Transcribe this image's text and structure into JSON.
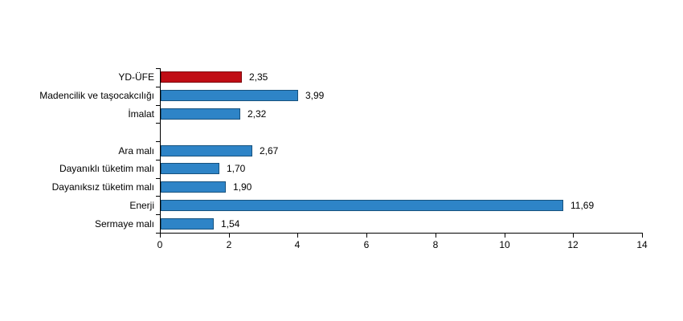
{
  "chart_data": {
    "type": "bar",
    "orientation": "horizontal",
    "title": "",
    "xlabel": "",
    "ylabel": "",
    "xlim": [
      0,
      14
    ],
    "x_ticks": [
      0,
      2,
      4,
      6,
      8,
      10,
      12,
      14
    ],
    "x_tick_labels": [
      "0",
      "2",
      "4",
      "6",
      "8",
      "10",
      "12",
      "14"
    ],
    "grid": false,
    "legend": false,
    "decimal_separator": ",",
    "categories": [
      "YD-ÜFE",
      "Madencilik ve taşocakcılığı",
      "İmalat",
      "",
      "Ara malı",
      "Dayanıklı tüketim malı",
      "Dayanıksız tüketim malı",
      "Enerji",
      "Sermaye malı"
    ],
    "values": [
      2.35,
      3.99,
      2.32,
      null,
      2.67,
      1.7,
      1.9,
      11.69,
      1.54
    ],
    "items": [
      {
        "label": "YD-ÜFE",
        "value": 2.35,
        "display": "2,35",
        "fill": "#C00D15",
        "border": "#7C090E"
      },
      {
        "label": "Madencilik ve taşocakcılığı",
        "value": 3.99,
        "display": "3,99",
        "fill": "#2E84C7",
        "border": "#17527E"
      },
      {
        "label": "İmalat",
        "value": 2.32,
        "display": "2,32",
        "fill": "#2E84C7",
        "border": "#17527E"
      },
      {
        "label": "",
        "value": null,
        "display": "",
        "fill": null,
        "border": null
      },
      {
        "label": "Ara malı",
        "value": 2.67,
        "display": "2,67",
        "fill": "#2E84C7",
        "border": "#17527E"
      },
      {
        "label": "Dayanıklı tüketim malı",
        "value": 1.7,
        "display": "1,70",
        "fill": "#2E84C7",
        "border": "#17527E"
      },
      {
        "label": "Dayanıksız tüketim malı",
        "value": 1.9,
        "display": "1,90",
        "fill": "#2E84C7",
        "border": "#17527E"
      },
      {
        "label": "Enerji",
        "value": 11.69,
        "display": "11,69",
        "fill": "#2E84C7",
        "border": "#17527E"
      },
      {
        "label": "Sermaye malı",
        "value": 1.54,
        "display": "1,54",
        "fill": "#2E84C7",
        "border": "#17527E"
      }
    ],
    "colors": {
      "highlight_bar": "#C00D15",
      "default_bar": "#2E84C7",
      "axis": "#000000",
      "text": "#000000",
      "background": "#FFFFFF"
    }
  }
}
